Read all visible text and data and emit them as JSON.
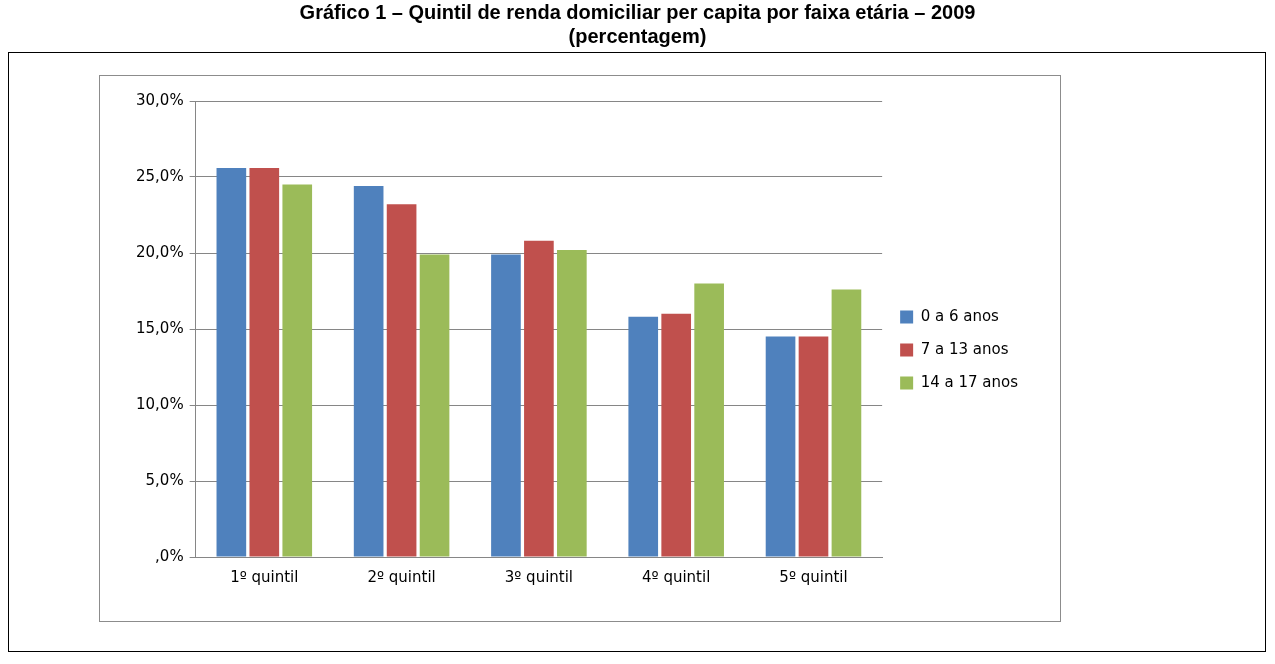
{
  "chart_data": {
    "type": "bar",
    "title": "Gráfico 1 – Quintil de renda domiciliar per capita por faixa etária – 2009",
    "subtitle": "(percentagem)",
    "categories": [
      "1º quintil",
      "2º quintil",
      "3º quintil",
      "4º quintil",
      "5º quintil"
    ],
    "series": [
      {
        "name": "0 a 6 anos",
        "color": "#4f81bd",
        "values": [
          25.6,
          24.4,
          19.9,
          15.8,
          14.5
        ]
      },
      {
        "name": "7 a 13 anos",
        "color": "#c0504d",
        "values": [
          25.6,
          23.2,
          20.8,
          16.0,
          14.5
        ]
      },
      {
        "name": "14 a 17 anos",
        "color": "#9bbb59",
        "values": [
          24.5,
          19.9,
          20.2,
          18.0,
          17.6
        ]
      }
    ],
    "ylim": [
      0,
      30
    ],
    "yticks": [
      {
        "value": 0,
        "label": ",0%"
      },
      {
        "value": 5,
        "label": "5,0%"
      },
      {
        "value": 10,
        "label": "10,0%"
      },
      {
        "value": 15,
        "label": "15,0%"
      },
      {
        "value": 20,
        "label": "20,0%"
      },
      {
        "value": 25,
        "label": "25,0%"
      },
      {
        "value": 30,
        "label": "30,0%"
      }
    ],
    "grid": "y",
    "legend": "right"
  }
}
